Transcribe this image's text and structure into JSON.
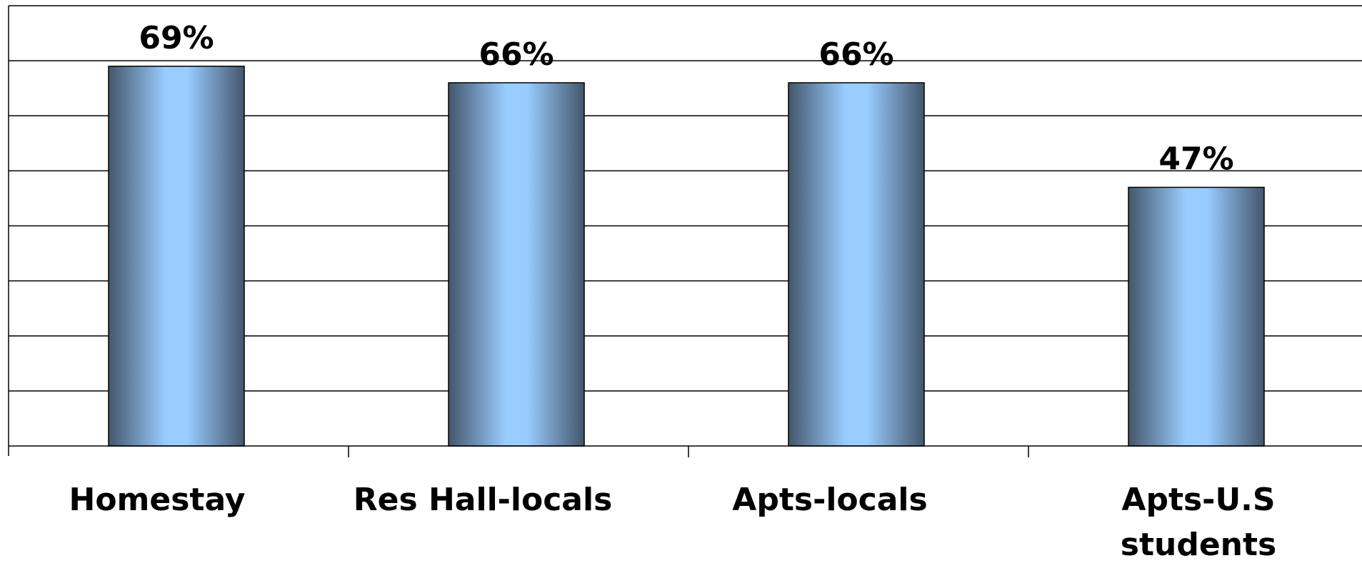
{
  "chart_data": {
    "type": "bar",
    "categories": [
      "Homestay",
      "Res Hall-locals",
      "Apts-locals",
      "Apts-U.S students"
    ],
    "category_label_lines": [
      [
        "Homestay"
      ],
      [
        "Res Hall-locals"
      ],
      [
        "Apts-locals"
      ],
      [
        "Apts-U.S",
        "students"
      ]
    ],
    "values": [
      69,
      66,
      66,
      47
    ],
    "data_labels": [
      "69%",
      "66%",
      "66%",
      "47%"
    ],
    "ylim": [
      0,
      80
    ],
    "y_gridline_step": 10,
    "grid": true,
    "legend": "none",
    "title": "",
    "xlabel": "",
    "ylabel": "",
    "colors": {
      "bar_edge": "#44566c",
      "bar_center": "#99ccff",
      "grid": "#000000",
      "text": "#000000"
    }
  }
}
